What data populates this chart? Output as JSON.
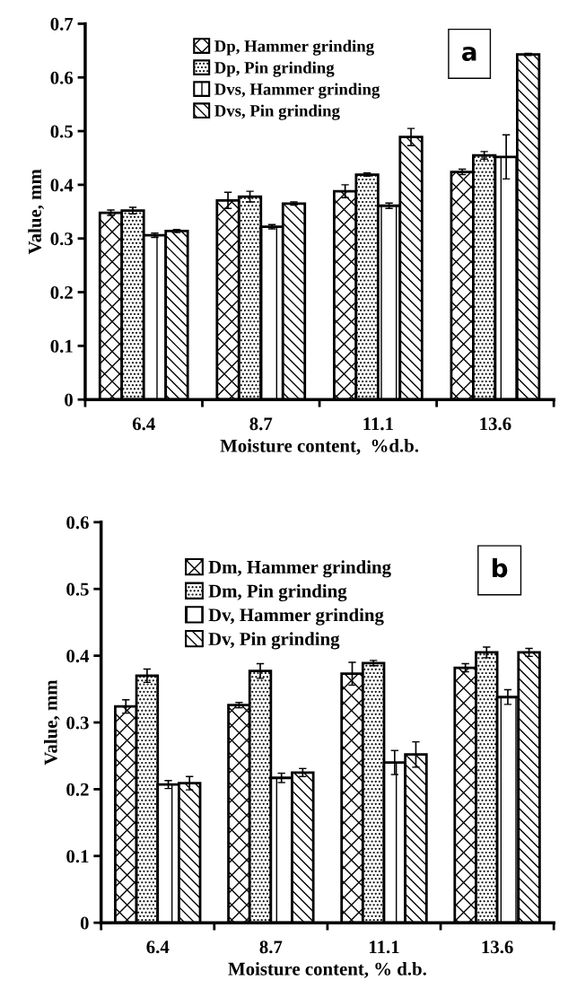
{
  "chart_data": [
    {
      "type": "bar",
      "xlabel": "Moisture content,  %d.b.",
      "ylabel": "Value, mm",
      "categories": [
        "6.4",
        "8.7",
        "11.1",
        "13.6"
      ],
      "ylim": [
        0,
        0.7
      ],
      "yticks": [
        0,
        0.1,
        0.2,
        0.3,
        0.4,
        0.5,
        0.6,
        0.7
      ],
      "legend": "top left",
      "grid": false,
      "annotations": [
        "a"
      ],
      "series": [
        {
          "name": "Dp, Hammer grinding",
          "color": "#000000",
          "values": [
            0.348,
            0.371,
            0.388,
            0.424
          ],
          "errors": [
            0.005,
            0.015,
            0.012,
            0.005
          ]
        },
        {
          "name": "Dp, Pin grinding",
          "color": "#000000",
          "values": [
            0.352,
            0.378,
            0.419,
            0.455
          ],
          "errors": [
            0.006,
            0.01,
            0.003,
            0.007
          ]
        },
        {
          "name": "Dvs, Hammer grinding",
          "color": "#000000",
          "values": [
            0.306,
            0.322,
            0.361,
            0.452
          ],
          "errors": [
            0.004,
            0.004,
            0.005,
            0.041
          ]
        },
        {
          "name": "Dvs, Pin grinding",
          "color": "#000000",
          "values": [
            0.314,
            0.365,
            0.489,
            0.643
          ],
          "errors": [
            0.003,
            0.003,
            0.016,
            0.002
          ]
        }
      ]
    },
    {
      "type": "bar",
      "xlabel": "Moisture content, % d.b.",
      "ylabel": "Value, mm",
      "categories": [
        "6.4",
        "8.7",
        "11.1",
        "13.6"
      ],
      "ylim": [
        0,
        0.6
      ],
      "yticks": [
        0,
        0.1,
        0.2,
        0.3,
        0.4,
        0.5,
        0.6
      ],
      "legend": "top left",
      "grid": false,
      "annotations": [
        "b"
      ],
      "series": [
        {
          "name": "Dm, Hammer grinding",
          "color": "#000000",
          "values": [
            0.324,
            0.326,
            0.373,
            0.382
          ],
          "errors": [
            0.01,
            0.004,
            0.017,
            0.006
          ]
        },
        {
          "name": "Dm, Pin grinding",
          "color": "#000000",
          "values": [
            0.37,
            0.377,
            0.389,
            0.405
          ],
          "errors": [
            0.01,
            0.011,
            0.004,
            0.008
          ]
        },
        {
          "name": "Dv, Hammer grinding",
          "color": "#000000",
          "values": [
            0.207,
            0.217,
            0.24,
            0.338
          ],
          "errors": [
            0.006,
            0.007,
            0.018,
            0.011
          ]
        },
        {
          "name": "Dv, Pin grinding",
          "color": "#000000",
          "values": [
            0.209,
            0.225,
            0.252,
            0.405
          ],
          "errors": [
            0.01,
            0.006,
            0.019,
            0.006
          ]
        }
      ]
    }
  ]
}
